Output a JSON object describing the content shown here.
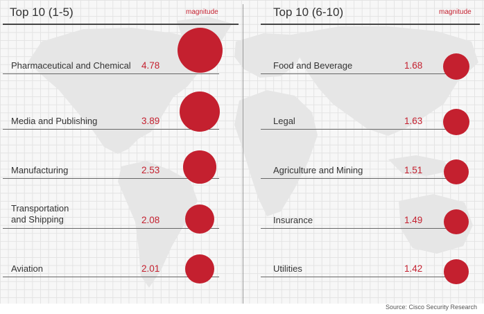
{
  "source": "Source: Cisco Security Research",
  "chart_data": [
    {
      "type": "bubble",
      "title": "Top 10 (1-5)",
      "size_label": "magnitude",
      "categories": [
        "Pharmaceutical and Chemical",
        "Media and Publishing",
        "Manufacturing",
        "Transportation\nand Shipping",
        "Aviation"
      ],
      "values": [
        4.78,
        3.89,
        2.53,
        2.08,
        2.01
      ],
      "value_labels": [
        "4.78",
        "3.89",
        "2.53",
        "2.08",
        "2.01"
      ],
      "color": "#c4202f",
      "grid": true
    },
    {
      "type": "bubble",
      "title": "Top 10 (6-10)",
      "size_label": "magnitude",
      "categories": [
        "Food and Beverage",
        "Legal",
        "Agriculture and Mining",
        "Insurance",
        "Utilities"
      ],
      "values": [
        1.68,
        1.63,
        1.51,
        1.49,
        1.42
      ],
      "value_labels": [
        "1.68",
        "1.63",
        "1.51",
        "1.49",
        "1.42"
      ],
      "color": "#c4202f",
      "grid": true
    }
  ]
}
